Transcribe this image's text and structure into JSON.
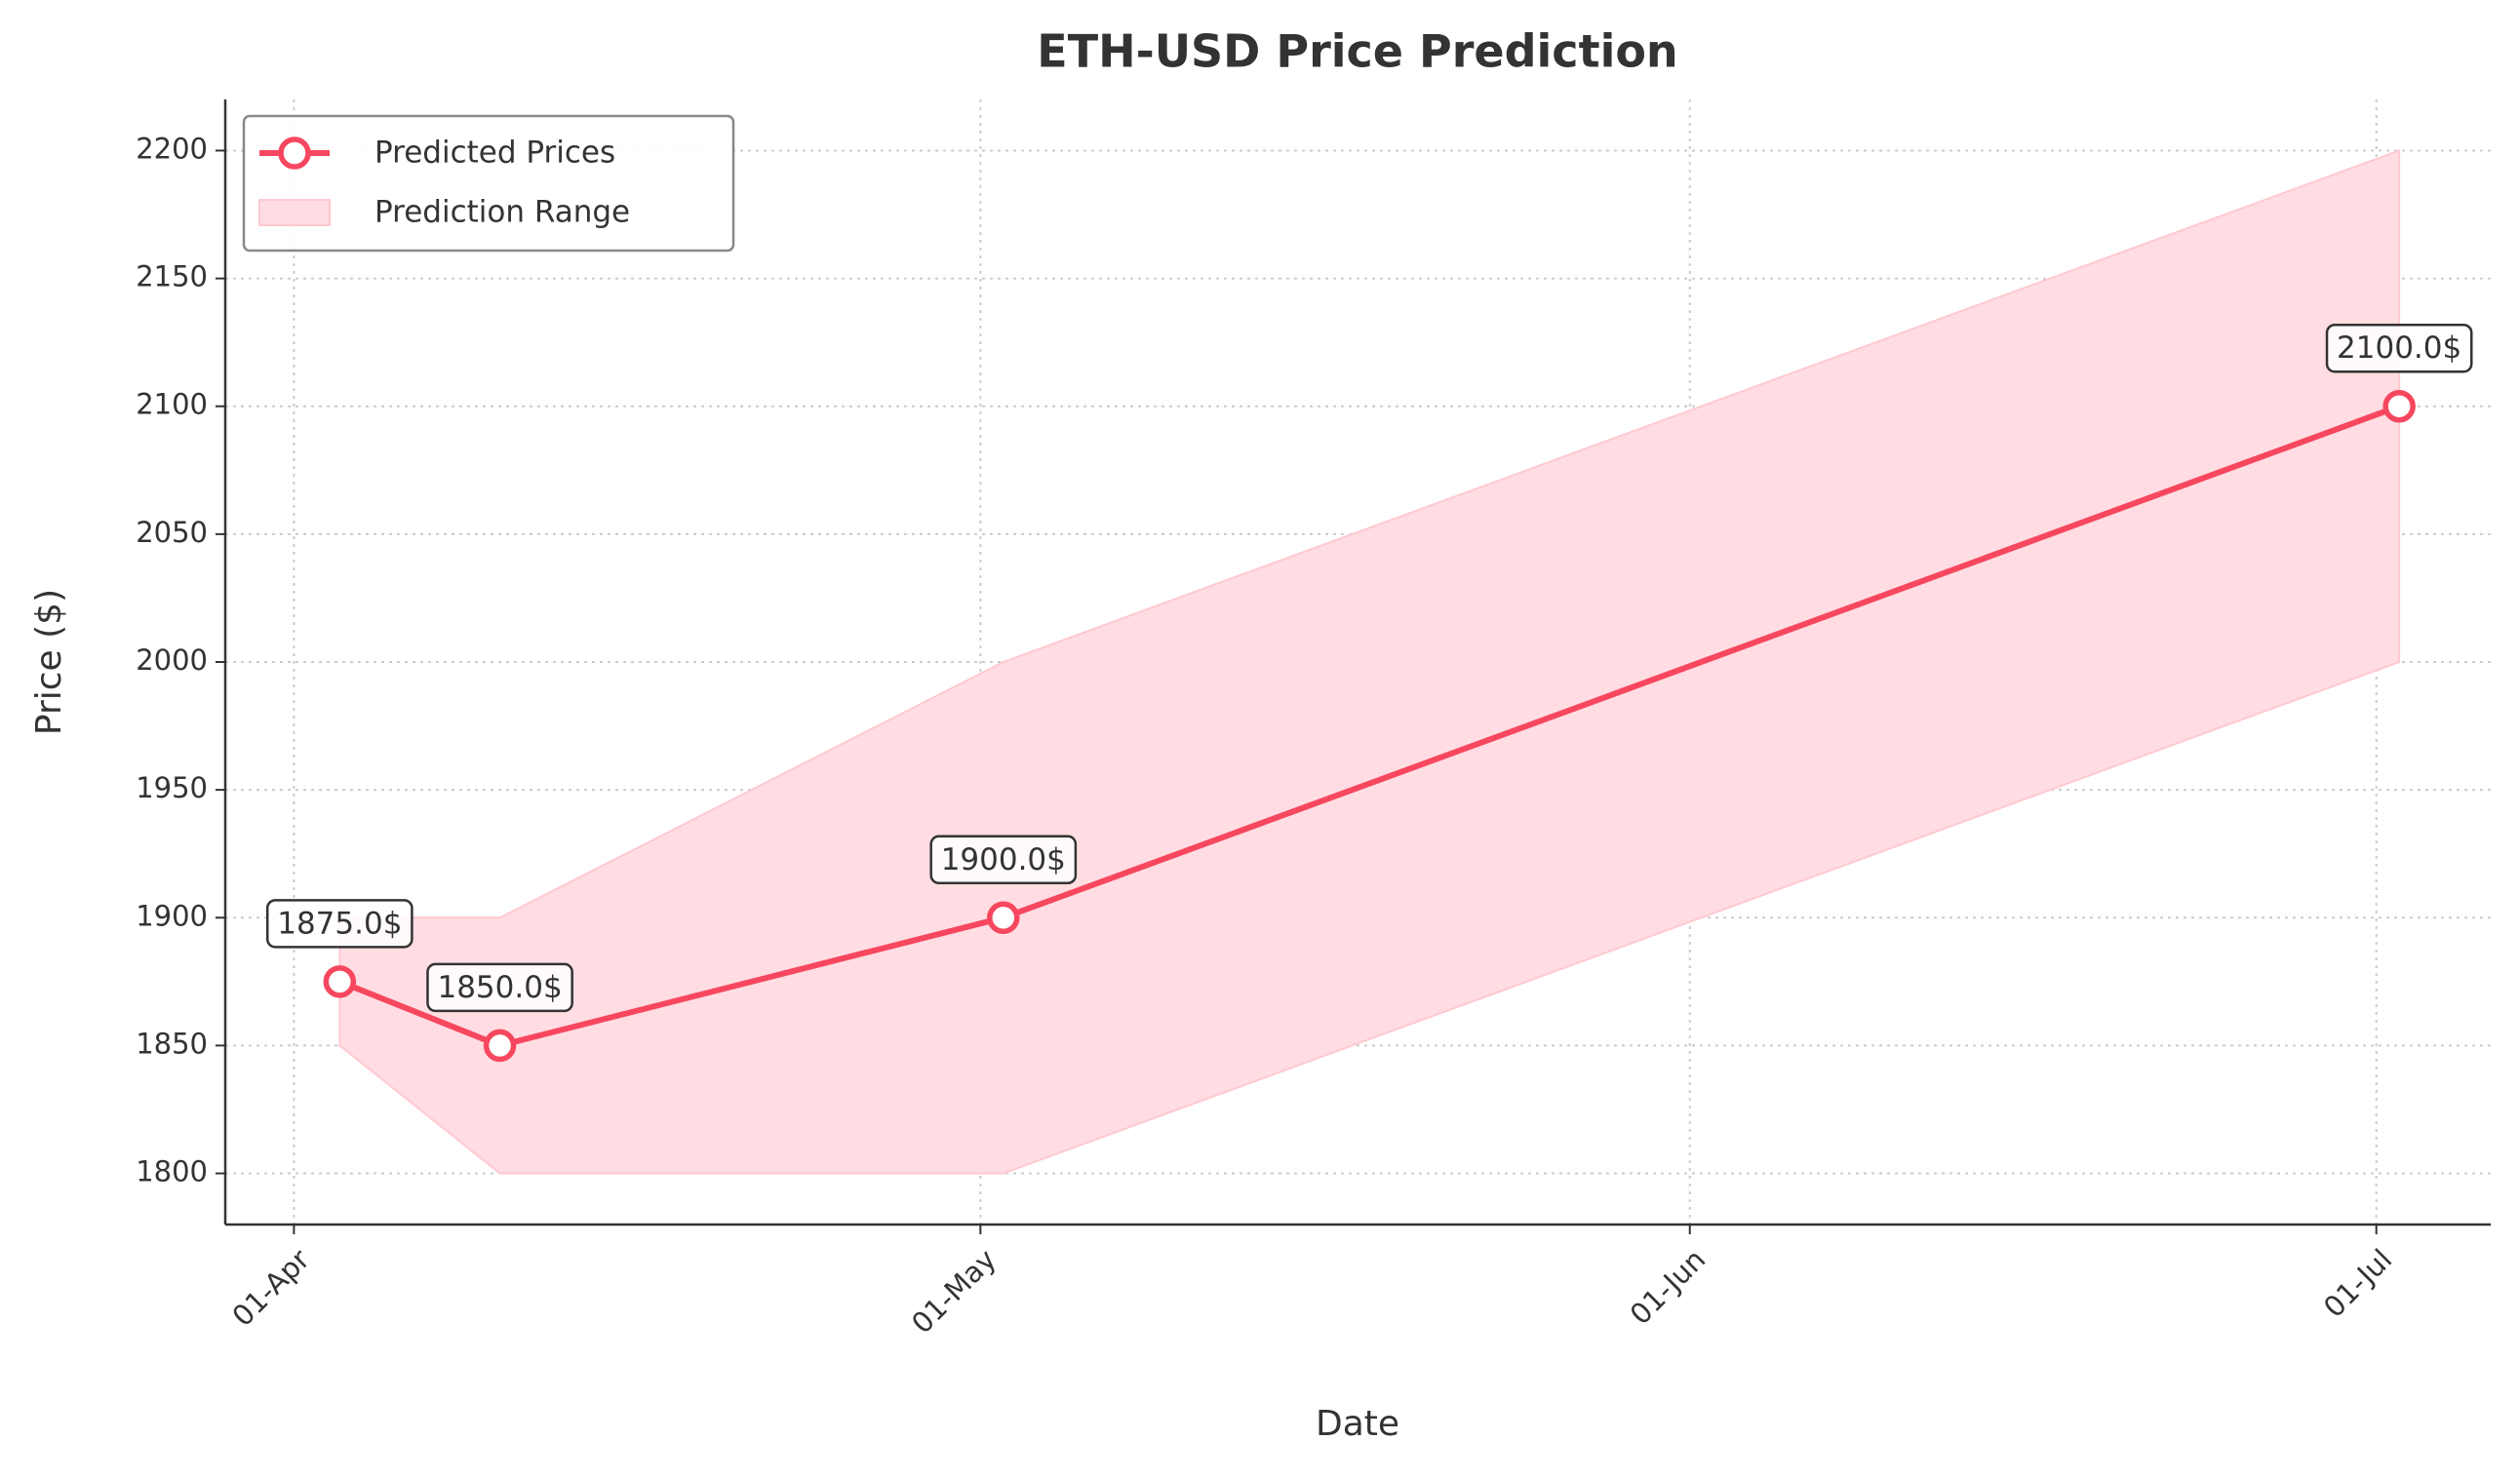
{
  "chart_data": {
    "type": "line",
    "title": "ETH-USD Price Prediction",
    "x_label": "Date",
    "y_label": "Price ($)",
    "x": [
      "03-Apr",
      "10-Apr",
      "02-May",
      "02-Jul"
    ],
    "series": [
      {
        "name": "Predicted Prices",
        "color": "#f7475f",
        "values": [
          1875,
          1850,
          1900,
          2100
        ],
        "value_labels": [
          "1875.0$",
          "1850.0$",
          "1900.0$",
          "2100.0$"
        ]
      },
      {
        "name": "Prediction Range",
        "color": "#ffdde2",
        "lower": [
          1850,
          1800,
          1800,
          2000
        ],
        "upper": [
          1900,
          1900,
          2000,
          2200
        ]
      }
    ],
    "xlim": [
      "29-Mar",
      "06-Jul"
    ],
    "xticks": [
      "01-Apr",
      "01-May",
      "01-Jun",
      "01-Jul"
    ],
    "ylim": [
      1780,
      2220
    ],
    "yticks": [
      1800,
      1850,
      1900,
      1950,
      2000,
      2050,
      2100,
      2150,
      2200
    ],
    "grid": true,
    "legend": "upper left"
  }
}
